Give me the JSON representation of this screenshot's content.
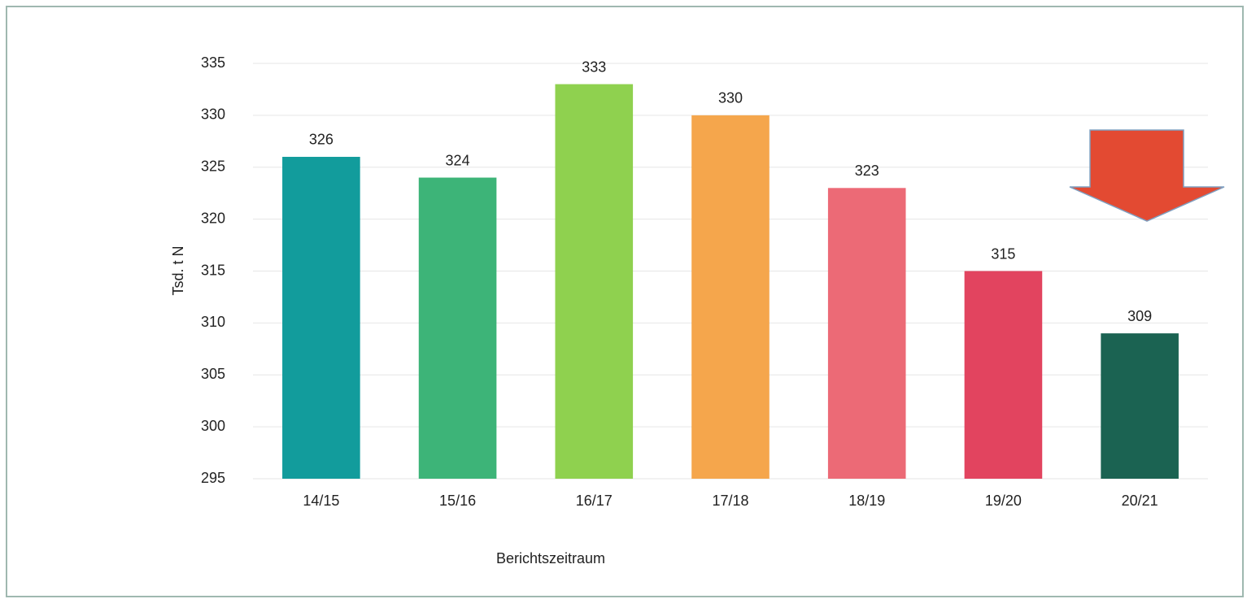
{
  "chart_data": {
    "type": "bar",
    "y_label": "Tsd. t N",
    "x_label": "Berichtszeitraum",
    "categories": [
      "14/15",
      "15/16",
      "16/17",
      "17/18",
      "18/19",
      "19/20",
      "20/21"
    ],
    "values": [
      326,
      324,
      333,
      330,
      323,
      315,
      309
    ],
    "colors": [
      "#129c9c",
      "#3db478",
      "#8fd14f",
      "#f5a64c",
      "#ec6a76",
      "#e2445f",
      "#1b6352"
    ],
    "ylim": [
      295,
      335
    ],
    "yticks": [
      295,
      300,
      305,
      310,
      315,
      320,
      325,
      330,
      335
    ],
    "grid": true
  }
}
